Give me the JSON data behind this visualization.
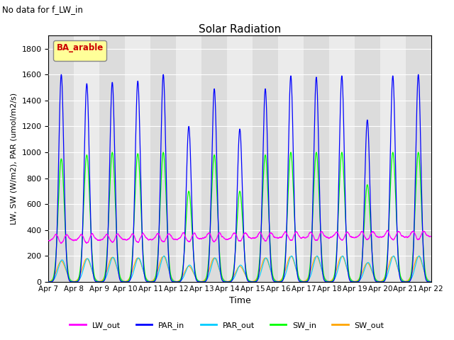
{
  "title": "Solar Radiation",
  "subtitle": "No data for f_LW_in",
  "xlabel": "Time",
  "ylabel": "LW, SW (W/m2), PAR (umol/m2/s)",
  "ylim": [
    0,
    1900
  ],
  "yticks": [
    0,
    200,
    400,
    600,
    800,
    1000,
    1200,
    1400,
    1600,
    1800
  ],
  "n_days": 15,
  "legend_label": "BA_arable",
  "colors": {
    "LW_out": "#ff00ff",
    "PAR_in": "#0000ff",
    "PAR_out": "#00ccff",
    "SW_in": "#00ff00",
    "SW_out": "#ffa500"
  },
  "plot_bg": "#e8e8e8",
  "band_color": "#d0d0d0",
  "par_in_peak": 1600,
  "sw_in_peak": 1000,
  "par_out_peak": 220,
  "sw_out_peak": 200,
  "lw_out_base": 320,
  "lw_out_amp": 60
}
